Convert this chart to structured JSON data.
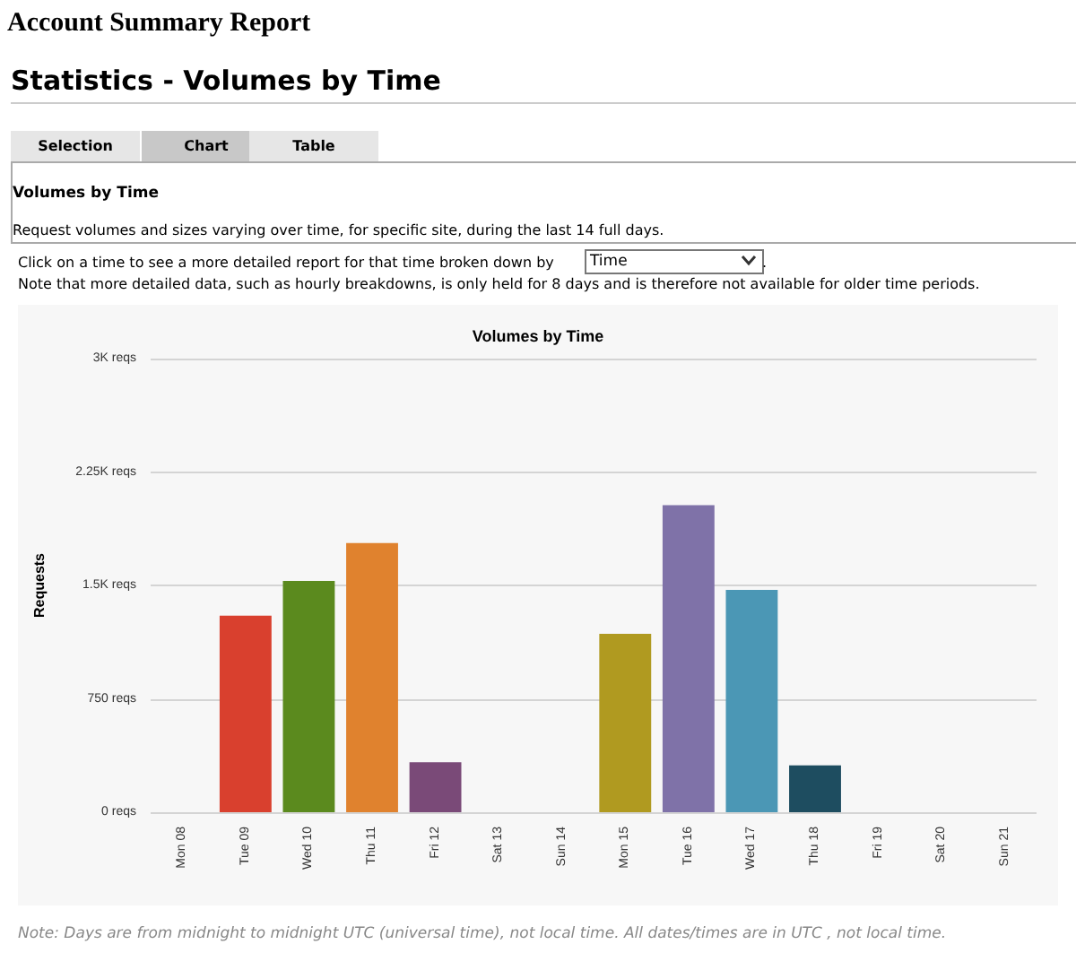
{
  "chart_data": {
    "type": "bar",
    "title": "Volumes by Time",
    "ylabel": "Requests",
    "categories": [
      "Mon 08",
      "Tue 09",
      "Wed 10",
      "Thu 11",
      "Fri 12",
      "Sat 13",
      "Sun 14",
      "Mon 15",
      "Tue 16",
      "Wed 17",
      "Thu 18",
      "Fri 19",
      "Sat 20",
      "Sun 21"
    ],
    "values": [
      0,
      1300,
      1530,
      1780,
      330,
      0,
      0,
      1180,
      2030,
      1470,
      310,
      0,
      0,
      0
    ],
    "colors": [
      "#1a8fc9",
      "#d9402e",
      "#5b8a1e",
      "#e0822e",
      "#7a4a78",
      "#2bb5ad",
      "#f0b020",
      "#b09a20",
      "#7f72a8",
      "#4b97b5",
      "#1e4d60",
      "#1a8fc9",
      "#d9402e",
      "#5b8a1e"
    ],
    "ylim": [
      0,
      3000
    ],
    "yticks": [
      {
        "value": 0,
        "label": "0 reqs"
      },
      {
        "value": 750,
        "label": "750 reqs"
      },
      {
        "value": 1500,
        "label": "1.5K reqs"
      },
      {
        "value": 2250,
        "label": "2.25K reqs"
      },
      {
        "value": 3000,
        "label": "3K reqs"
      }
    ],
    "grid": "y",
    "annotations": [
      "Account Summary Report",
      "Statistics - Volumes by Time",
      "Selection",
      "Chart",
      "Table",
      "Volumes by Time",
      "Request volumes and sizes varying over time, for specific site, during the last 14 full days.",
      "Click on a time to see a more detailed report for that time broken down by",
      "Time",
      "Note that more detailed data, such as hourly breakdowns, is only held for 8 days and is therefore not available for older time periods.",
      "Note: Days are from midnight to midnight UTC (universal time), not local time. All dates/times are in UTC , not local time.",
      "."
    ]
  }
}
